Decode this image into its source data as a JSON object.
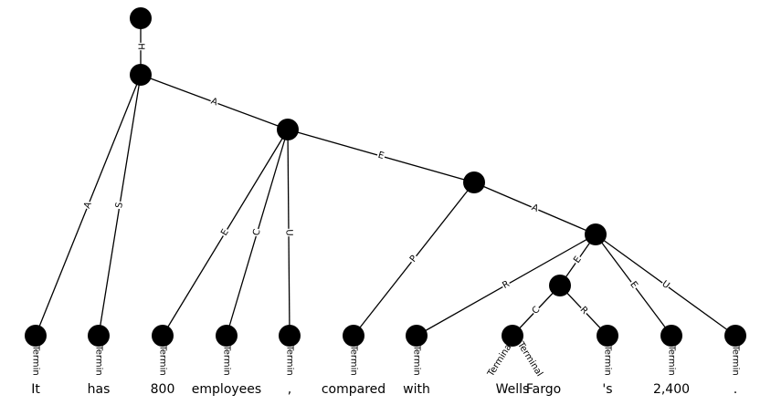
{
  "graph": {
    "nodes": [
      {
        "id": "r"
      },
      {
        "id": "n1"
      },
      {
        "id": "n2"
      },
      {
        "id": "n3"
      },
      {
        "id": "n4"
      },
      {
        "id": "n5"
      },
      {
        "id": "t0",
        "word": "It"
      },
      {
        "id": "t1",
        "word": "has"
      },
      {
        "id": "t2",
        "word": "800"
      },
      {
        "id": "t3",
        "word": "employees"
      },
      {
        "id": "t4",
        "word": ","
      },
      {
        "id": "t5",
        "word": "compared"
      },
      {
        "id": "t6",
        "word": "with"
      },
      {
        "id": "t7",
        "word": "Wells"
      },
      {
        "id": "t8",
        "word": "Fargo"
      },
      {
        "id": "t9",
        "word": "'s"
      },
      {
        "id": "t10",
        "word": "2,400"
      },
      {
        "id": "t11",
        "word": "."
      }
    ],
    "edges": [
      {
        "from": "r",
        "to": "n1",
        "label": "H"
      },
      {
        "from": "n1",
        "to": "n2",
        "label": "A"
      },
      {
        "from": "n1",
        "to": "t0",
        "label": "A"
      },
      {
        "from": "n1",
        "to": "t1",
        "label": "S"
      },
      {
        "from": "n2",
        "to": "n3",
        "label": "E"
      },
      {
        "from": "n2",
        "to": "t2",
        "label": "E"
      },
      {
        "from": "n2",
        "to": "t3",
        "label": "C"
      },
      {
        "from": "n2",
        "to": "t4",
        "label": "U"
      },
      {
        "from": "n3",
        "to": "n4",
        "label": "A"
      },
      {
        "from": "n3",
        "to": "t5",
        "label": "P"
      },
      {
        "from": "n4",
        "to": "t6",
        "label": "R"
      },
      {
        "from": "n4",
        "to": "n5",
        "label": "E"
      },
      {
        "from": "n4",
        "to": "t10",
        "label": "E"
      },
      {
        "from": "n4",
        "to": "t11",
        "label": "U"
      },
      {
        "from": "n5",
        "to": "t7",
        "label": "C"
      },
      {
        "from": "n5",
        "to": "t9",
        "label": "R"
      }
    ],
    "terminal_edges": [
      {
        "from": "t0",
        "label": "Termin"
      },
      {
        "from": "t1",
        "label": "Termin"
      },
      {
        "from": "t2",
        "label": "Termin"
      },
      {
        "from": "t3",
        "label": "Termin"
      },
      {
        "from": "t4",
        "label": "Termin"
      },
      {
        "from": "t5",
        "label": "Termin"
      },
      {
        "from": "t6",
        "label": "Termin"
      },
      {
        "from": "t7",
        "label": "Terminal"
      },
      {
        "from": "t8",
        "label": "Terminal"
      },
      {
        "from": "t9",
        "label": "Termin"
      },
      {
        "from": "t10",
        "label": "Termin"
      },
      {
        "from": "t11",
        "label": "Termin"
      }
    ]
  }
}
